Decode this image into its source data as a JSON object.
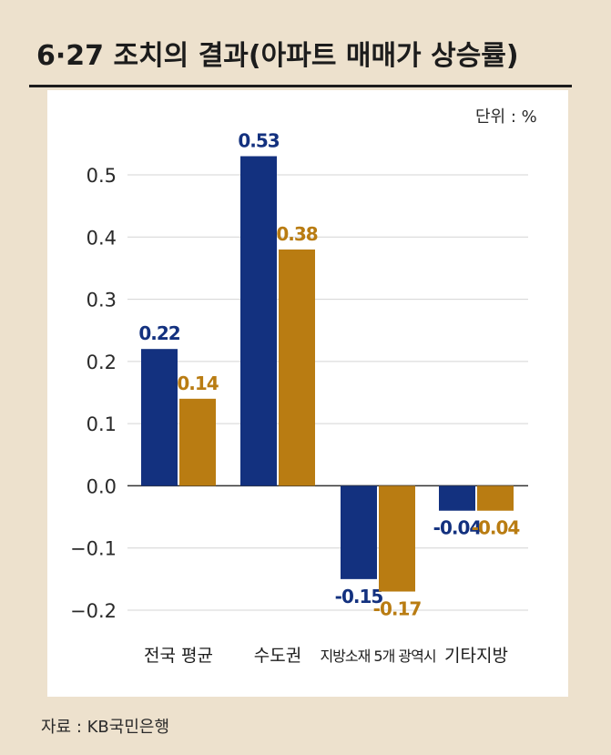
{
  "header": {
    "title": "6·27 조치의 결과(아파트 매매가 상승률)"
  },
  "unit_label": "단위 : %",
  "source": "자료 : KB국민은행",
  "chart_data": {
    "type": "bar",
    "title": "6·27 조치의 결과(아파트 매매가 상승률)",
    "categories": [
      "전국 평균",
      "수도권",
      "지방소재 5개 광역시",
      "기타지방"
    ],
    "series": [
      {
        "values": [
          0.22,
          0.53,
          -0.15,
          -0.04
        ],
        "color": "#13317f"
      },
      {
        "values": [
          0.14,
          0.38,
          -0.17,
          -0.04
        ],
        "color": "#b97c12"
      }
    ],
    "data_labels": [
      [
        "0.22",
        "0.53",
        "-0.15",
        "-0.04"
      ],
      [
        "0.14",
        "0.38",
        "-0.17",
        "-0.04"
      ]
    ],
    "yticks": [
      0.5,
      0.4,
      0.3,
      0.2,
      0.1,
      0.0,
      -0.1,
      -0.2
    ],
    "ytick_labels": [
      "0.5",
      "0.4",
      "0.3",
      "0.2",
      "0.1",
      "0.0",
      "−0.1",
      "−0.2"
    ],
    "ylim": [
      -0.2,
      0.5
    ],
    "xlabel": "",
    "ylabel": "",
    "grid": true,
    "legend": "none"
  }
}
